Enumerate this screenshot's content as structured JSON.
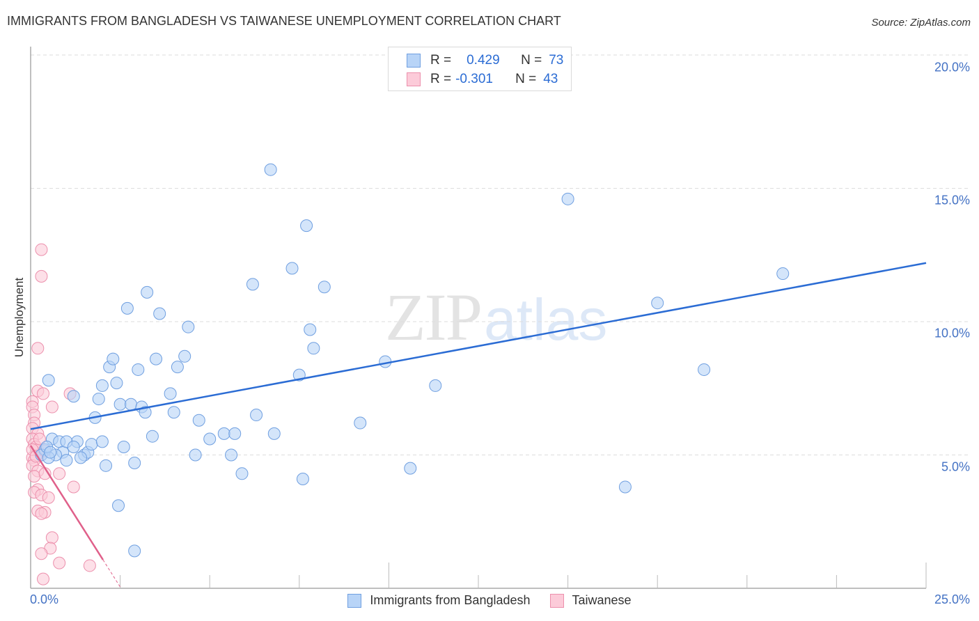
{
  "header": {
    "title": "IMMIGRANTS FROM BANGLADESH VS TAIWANESE UNEMPLOYMENT CORRELATION CHART",
    "source": "Source: ZipAtlas.com"
  },
  "watermark": {
    "zip": "ZIP",
    "atlas": "atlas"
  },
  "legend": {
    "rows": [
      {
        "r_label": "R =",
        "r_value": "0.429",
        "n_label": "N =",
        "n_value": "73",
        "color": "#b8d4f7",
        "border": "#6f9fe0"
      },
      {
        "r_label": "R =",
        "r_value": "-0.301",
        "n_label": "N =",
        "n_value": "43",
        "color": "#fccbd9",
        "border": "#ec8fac"
      }
    ]
  },
  "axes": {
    "y_label": "Unemployment",
    "y_ticks": [
      "20.0%",
      "15.0%",
      "10.0%",
      "5.0%"
    ],
    "x_ticks": [
      "0.0%",
      "25.0%"
    ]
  },
  "bottom_legend": {
    "items": [
      {
        "label": "Immigrants from Bangladesh",
        "color": "#b8d4f7",
        "border": "#6f9fe0"
      },
      {
        "label": "Taiwanese",
        "color": "#fccbd9",
        "border": "#ec8fac"
      }
    ]
  },
  "colors": {
    "blue_fill": "#b8d4f7",
    "blue_stroke": "#6f9fe0",
    "blue_line": "#2b6cd4",
    "pink_fill": "#fccbd9",
    "pink_stroke": "#ec8fac",
    "pink_line": "#e0608a",
    "tick_label": "#4472c4",
    "grid": "#dddddd"
  },
  "chart_data": {
    "type": "scatter",
    "title": "IMMIGRANTS FROM BANGLADESH VS TAIWANESE UNEMPLOYMENT CORRELATION CHART",
    "xlabel": "",
    "ylabel": "Unemployment",
    "xlim": [
      0,
      25
    ],
    "ylim": [
      0,
      20
    ],
    "x_unit": "%",
    "y_unit": "%",
    "grid": "horizontal dashed at 5, 10, 15, 20",
    "legend_position": "top-center box and bottom-center",
    "series": [
      {
        "name": "Immigrants from Bangladesh",
        "r": 0.429,
        "n": 73,
        "trend": {
          "x": [
            0,
            25
          ],
          "y": [
            5.97,
            12.2
          ]
        },
        "points": [
          [
            0.5,
            7.8
          ],
          [
            0.6,
            5.6
          ],
          [
            0.8,
            5.5
          ],
          [
            0.9,
            5.1
          ],
          [
            1.0,
            4.8
          ],
          [
            1.2,
            7.2
          ],
          [
            0.7,
            5.0
          ],
          [
            0.4,
            5.2
          ],
          [
            0.3,
            5.0
          ],
          [
            0.5,
            4.9
          ],
          [
            1.3,
            5.5
          ],
          [
            1.5,
            5.0
          ],
          [
            1.6,
            5.1
          ],
          [
            1.7,
            5.4
          ],
          [
            1.4,
            4.9
          ],
          [
            1.8,
            6.4
          ],
          [
            1.9,
            7.1
          ],
          [
            2.0,
            7.6
          ],
          [
            2.1,
            4.6
          ],
          [
            2.2,
            8.3
          ],
          [
            2.3,
            8.6
          ],
          [
            2.4,
            7.7
          ],
          [
            2.5,
            6.9
          ],
          [
            2.6,
            5.3
          ],
          [
            2.7,
            10.5
          ],
          [
            2.8,
            6.9
          ],
          [
            2.9,
            4.7
          ],
          [
            3.0,
            8.2
          ],
          [
            3.1,
            6.8
          ],
          [
            3.2,
            6.6
          ],
          [
            3.25,
            11.1
          ],
          [
            3.4,
            5.7
          ],
          [
            3.5,
            8.6
          ],
          [
            3.6,
            10.3
          ],
          [
            3.9,
            7.3
          ],
          [
            4.0,
            6.6
          ],
          [
            4.1,
            8.3
          ],
          [
            4.3,
            8.7
          ],
          [
            4.4,
            9.8
          ],
          [
            4.6,
            5.0
          ],
          [
            4.7,
            6.3
          ],
          [
            5.0,
            5.6
          ],
          [
            5.4,
            5.8
          ],
          [
            5.7,
            5.8
          ],
          [
            5.6,
            5.0
          ],
          [
            5.9,
            4.3
          ],
          [
            6.2,
            11.4
          ],
          [
            6.3,
            6.5
          ],
          [
            6.7,
            15.7
          ],
          [
            6.8,
            5.8
          ],
          [
            7.3,
            12.0
          ],
          [
            7.5,
            8.0
          ],
          [
            7.6,
            4.1
          ],
          [
            7.7,
            13.6
          ],
          [
            7.8,
            9.7
          ],
          [
            7.9,
            9.0
          ],
          [
            8.2,
            11.3
          ],
          [
            9.2,
            6.2
          ],
          [
            9.9,
            8.5
          ],
          [
            10.6,
            4.5
          ],
          [
            11.3,
            7.6
          ],
          [
            15.0,
            14.6
          ],
          [
            16.6,
            3.8
          ],
          [
            17.5,
            10.7
          ],
          [
            18.8,
            8.2
          ],
          [
            21.0,
            11.8
          ],
          [
            2.45,
            3.1
          ],
          [
            2.9,
            1.4
          ],
          [
            1.0,
            5.5
          ],
          [
            1.2,
            5.3
          ],
          [
            0.45,
            5.3
          ],
          [
            0.55,
            5.1
          ],
          [
            2.0,
            5.5
          ]
        ]
      },
      {
        "name": "Taiwanese",
        "r": -0.301,
        "n": 43,
        "trend": {
          "x": [
            0,
            2.02
          ],
          "y": [
            5.35,
            1.07
          ],
          "dashed_extension": {
            "x": [
              2.02,
              2.5
            ],
            "y": [
              1.07,
              0.05
            ]
          }
        },
        "points": [
          [
            0.3,
            12.7
          ],
          [
            0.3,
            11.7
          ],
          [
            0.2,
            9.0
          ],
          [
            0.2,
            7.4
          ],
          [
            0.05,
            7.0
          ],
          [
            0.05,
            6.8
          ],
          [
            0.35,
            7.3
          ],
          [
            0.6,
            6.8
          ],
          [
            0.1,
            6.5
          ],
          [
            0.1,
            6.2
          ],
          [
            0.05,
            6.0
          ],
          [
            0.2,
            5.8
          ],
          [
            0.05,
            5.6
          ],
          [
            0.1,
            5.4
          ],
          [
            0.2,
            5.2
          ],
          [
            0.3,
            5.0
          ],
          [
            0.05,
            4.9
          ],
          [
            0.1,
            4.8
          ],
          [
            0.05,
            4.6
          ],
          [
            0.2,
            4.4
          ],
          [
            0.1,
            4.2
          ],
          [
            0.4,
            4.3
          ],
          [
            0.8,
            4.3
          ],
          [
            0.2,
            3.7
          ],
          [
            0.1,
            3.6
          ],
          [
            0.3,
            3.5
          ],
          [
            0.5,
            3.4
          ],
          [
            0.2,
            2.9
          ],
          [
            0.4,
            2.85
          ],
          [
            0.3,
            2.8
          ],
          [
            1.2,
            3.8
          ],
          [
            1.1,
            7.3
          ],
          [
            0.6,
            1.9
          ],
          [
            0.55,
            1.5
          ],
          [
            0.3,
            1.3
          ],
          [
            0.8,
            0.95
          ],
          [
            1.65,
            0.85
          ],
          [
            0.35,
            0.35
          ],
          [
            0.15,
            5.3
          ],
          [
            0.25,
            5.6
          ],
          [
            0.05,
            5.2
          ],
          [
            0.15,
            4.95
          ],
          [
            0.4,
            5.15
          ]
        ]
      }
    ]
  }
}
